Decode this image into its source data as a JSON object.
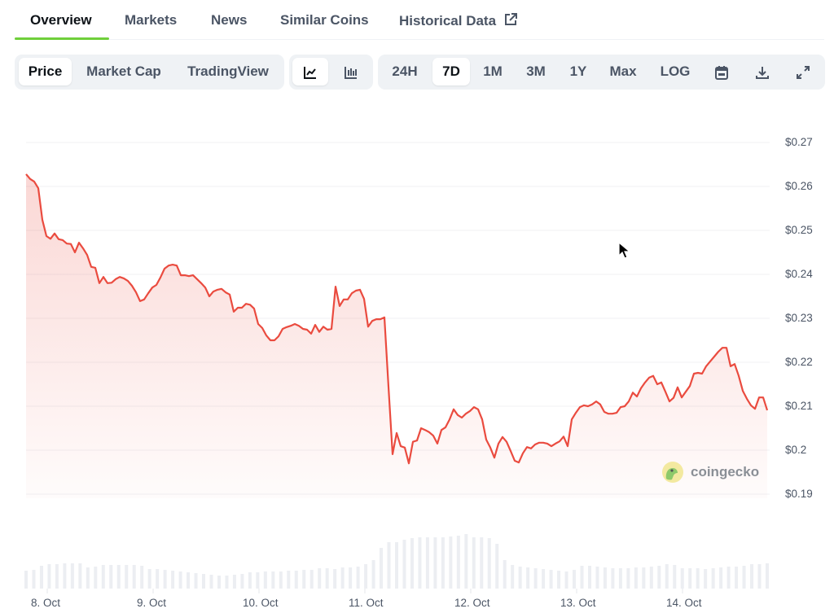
{
  "tabs": [
    {
      "label": "Overview",
      "active": true
    },
    {
      "label": "Markets"
    },
    {
      "label": "News"
    },
    {
      "label": "Similar Coins"
    },
    {
      "label": "Historical Data",
      "icon": "external-link-icon"
    }
  ],
  "toolbar": {
    "data_type": [
      {
        "label": "Price",
        "selected": true
      },
      {
        "label": "Market Cap"
      },
      {
        "label": "TradingView"
      }
    ],
    "chart_style": [
      {
        "icon": "line-chart-icon",
        "selected": true
      },
      {
        "icon": "candlestick-chart-icon"
      }
    ],
    "ranges": [
      {
        "label": "24H"
      },
      {
        "label": "7D",
        "selected": true
      },
      {
        "label": "1M"
      },
      {
        "label": "3M"
      },
      {
        "label": "1Y"
      },
      {
        "label": "Max"
      },
      {
        "label": "LOG"
      }
    ],
    "actions": [
      {
        "icon": "calendar-icon"
      },
      {
        "icon": "download-icon"
      },
      {
        "icon": "expand-icon"
      }
    ]
  },
  "watermark": "coingecko",
  "colors": {
    "line": "#ea4b3f",
    "accent": "#6fcf3a",
    "volume": "#eceef2"
  },
  "chart_data": {
    "type": "line",
    "y_ticks": [
      "$0.27",
      "$0.26",
      "$0.25",
      "$0.24",
      "$0.23",
      "$0.22",
      "$0.21",
      "$0.2",
      "$0.19"
    ],
    "y_tick_values": [
      0.27,
      0.26,
      0.25,
      0.24,
      0.23,
      0.22,
      0.21,
      0.2,
      0.19
    ],
    "ylim": [
      0.19,
      0.27
    ],
    "x_ticks": [
      "8. Oct",
      "9. Oct",
      "10. Oct",
      "11. Oct",
      "12. Oct",
      "13. Oct",
      "14. Oct"
    ],
    "grid": true,
    "price": [
      0.2628,
      0.2617,
      0.2611,
      0.2596,
      0.2524,
      0.2487,
      0.2481,
      0.2493,
      0.248,
      0.2478,
      0.247,
      0.2469,
      0.245,
      0.2472,
      0.2459,
      0.2444,
      0.2417,
      0.2415,
      0.238,
      0.2394,
      0.238,
      0.2381,
      0.2389,
      0.2394,
      0.2391,
      0.2385,
      0.2374,
      0.2359,
      0.2339,
      0.2343,
      0.2357,
      0.237,
      0.2376,
      0.2393,
      0.2413,
      0.242,
      0.2422,
      0.242,
      0.2398,
      0.2398,
      0.2396,
      0.2398,
      0.2389,
      0.238,
      0.237,
      0.235,
      0.2361,
      0.2365,
      0.2367,
      0.2359,
      0.2354,
      0.2315,
      0.2324,
      0.2324,
      0.2333,
      0.2331,
      0.2322,
      0.2287,
      0.2278,
      0.2261,
      0.225,
      0.225,
      0.2259,
      0.2276,
      0.228,
      0.2283,
      0.2287,
      0.2283,
      0.2276,
      0.2274,
      0.2265,
      0.2285,
      0.2269,
      0.2281,
      0.2274,
      0.2276,
      0.2372,
      0.2328,
      0.2343,
      0.2343,
      0.2357,
      0.2363,
      0.2365,
      0.2344,
      0.2281,
      0.2294,
      0.2298,
      0.2298,
      0.2302,
      0.2144,
      0.1991,
      0.2039,
      0.2009,
      0.2006,
      0.197,
      0.2019,
      0.2022,
      0.205,
      0.2046,
      0.2041,
      0.2033,
      0.2015,
      0.2046,
      0.2052,
      0.207,
      0.2093,
      0.208,
      0.2074,
      0.2083,
      0.2089,
      0.2098,
      0.2093,
      0.207,
      0.2024,
      0.2006,
      0.1983,
      0.2015,
      0.203,
      0.2019,
      0.1998,
      0.1976,
      0.1972,
      0.1993,
      0.2007,
      0.2004,
      0.2013,
      0.2017,
      0.2017,
      0.2015,
      0.2009,
      0.2015,
      0.202,
      0.2031,
      0.2009,
      0.207,
      0.2085,
      0.2098,
      0.2102,
      0.21,
      0.2104,
      0.2111,
      0.2104,
      0.2087,
      0.2083,
      0.2083,
      0.2085,
      0.2098,
      0.21,
      0.2111,
      0.2131,
      0.2122,
      0.2141,
      0.2154,
      0.2165,
      0.2169,
      0.215,
      0.2154,
      0.2133,
      0.2111,
      0.2119,
      0.2143,
      0.212,
      0.2133,
      0.2146,
      0.2174,
      0.2176,
      0.2174,
      0.2191,
      0.2202,
      0.2213,
      0.2224,
      0.2233,
      0.2233,
      0.2191,
      0.2196,
      0.2169,
      0.2135,
      0.2117,
      0.2102,
      0.2094,
      0.212,
      0.212,
      0.2091
    ],
    "volume_relative": [
      22,
      23,
      28,
      30,
      30,
      31,
      31,
      31,
      26,
      27,
      29,
      29,
      29,
      29,
      29,
      28,
      24,
      24,
      23,
      22,
      21,
      20,
      19,
      18,
      17,
      16,
      16,
      17,
      18,
      20,
      20,
      21,
      21,
      21,
      22,
      22,
      23,
      23,
      25,
      25,
      24,
      26,
      26,
      27,
      30,
      35,
      50,
      57,
      57,
      60,
      62,
      63,
      63,
      63,
      63,
      64,
      65,
      67,
      63,
      63,
      62,
      55,
      35,
      29,
      27,
      26,
      25,
      24,
      23,
      22,
      21,
      23,
      28,
      28,
      27,
      26,
      25,
      25,
      25,
      26,
      26,
      27,
      28,
      30,
      29,
      25,
      25,
      25,
      24,
      25,
      26,
      27,
      27,
      28,
      30,
      30,
      31
    ]
  }
}
